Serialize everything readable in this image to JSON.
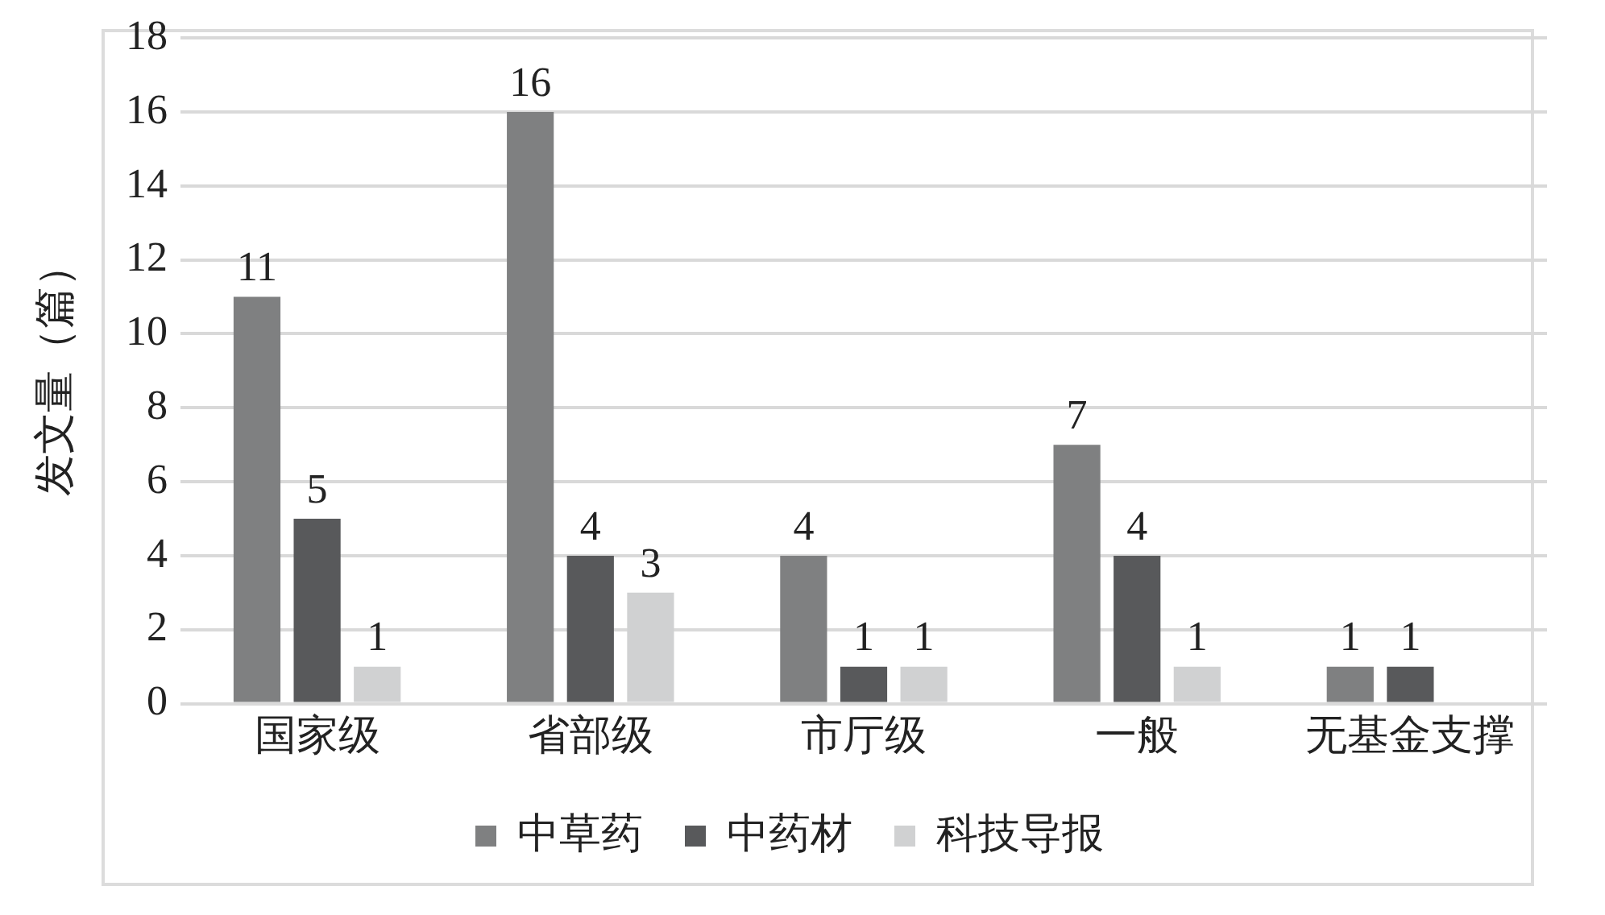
{
  "chart_data": {
    "type": "bar",
    "ylabel": "发文量（篇）",
    "categories": [
      "国家级",
      "省部级",
      "市厅级",
      "一般",
      "无基金支撑"
    ],
    "series": [
      {
        "name": "中草药",
        "color": "#7f8081",
        "values": [
          11,
          16,
          4,
          7,
          1
        ]
      },
      {
        "name": "中药材",
        "color": "#58595b",
        "values": [
          5,
          4,
          1,
          4,
          1
        ]
      },
      {
        "name": "科技导报",
        "color": "#d0d1d2",
        "values": [
          1,
          3,
          1,
          1,
          null
        ]
      }
    ],
    "ylim": [
      0,
      18
    ],
    "yticks": [
      0,
      2,
      4,
      6,
      8,
      10,
      12,
      14,
      16,
      18
    ],
    "grid": "y",
    "legend": "bottom",
    "data_labels": true
  }
}
